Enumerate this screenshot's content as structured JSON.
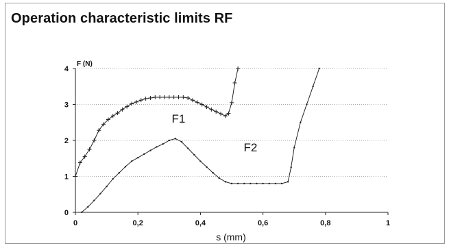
{
  "title": "Operation characteristic limits RF",
  "chart_data": {
    "type": "line",
    "title": "Operation characteristic limits RF",
    "xlabel": "s (mm)",
    "ylabel": "F (N)",
    "xlim": [
      0,
      1
    ],
    "ylim": [
      0,
      4
    ],
    "xticks": [
      "0",
      "0,2",
      "0,4",
      "0,6",
      "0,8",
      "1"
    ],
    "yticks": [
      "0",
      "1",
      "2",
      "3",
      "4"
    ],
    "grid": "horizontal dotted",
    "annotations": [
      {
        "text": "F1",
        "x": 0.33,
        "y": 2.5
      },
      {
        "text": "F2",
        "x": 0.56,
        "y": 1.7
      }
    ],
    "series": [
      {
        "name": "F1",
        "marker": "plus",
        "x": [
          0.0,
          0.015,
          0.03,
          0.045,
          0.06,
          0.075,
          0.09,
          0.105,
          0.12,
          0.135,
          0.15,
          0.165,
          0.18,
          0.195,
          0.21,
          0.225,
          0.24,
          0.255,
          0.27,
          0.285,
          0.3,
          0.315,
          0.33,
          0.345,
          0.36,
          0.375,
          0.39,
          0.405,
          0.42,
          0.435,
          0.45,
          0.465,
          0.48,
          0.49,
          0.5,
          0.51,
          0.52
        ],
        "y": [
          1.0,
          1.38,
          1.55,
          1.75,
          2.0,
          2.28,
          2.45,
          2.58,
          2.68,
          2.76,
          2.86,
          2.94,
          3.02,
          3.07,
          3.12,
          3.16,
          3.18,
          3.2,
          3.2,
          3.2,
          3.2,
          3.2,
          3.2,
          3.2,
          3.18,
          3.12,
          3.06,
          3.0,
          2.93,
          2.86,
          2.8,
          2.74,
          2.68,
          2.75,
          3.05,
          3.6,
          4.0
        ]
      },
      {
        "name": "F2",
        "marker": "dot",
        "x": [
          0.02,
          0.04,
          0.06,
          0.08,
          0.1,
          0.12,
          0.14,
          0.16,
          0.18,
          0.2,
          0.22,
          0.24,
          0.26,
          0.28,
          0.3,
          0.32,
          0.34,
          0.36,
          0.38,
          0.4,
          0.42,
          0.44,
          0.46,
          0.48,
          0.5,
          0.52,
          0.54,
          0.56,
          0.58,
          0.6,
          0.62,
          0.64,
          0.66,
          0.68,
          0.69,
          0.7,
          0.72,
          0.74,
          0.76,
          0.78
        ],
        "y": [
          0.0,
          0.15,
          0.33,
          0.52,
          0.72,
          0.93,
          1.1,
          1.27,
          1.42,
          1.52,
          1.62,
          1.72,
          1.82,
          1.9,
          2.0,
          2.05,
          1.96,
          1.78,
          1.6,
          1.42,
          1.26,
          1.1,
          0.95,
          0.85,
          0.8,
          0.8,
          0.8,
          0.8,
          0.8,
          0.8,
          0.8,
          0.8,
          0.8,
          0.85,
          1.25,
          1.8,
          2.5,
          3.0,
          3.5,
          4.0
        ]
      }
    ]
  }
}
